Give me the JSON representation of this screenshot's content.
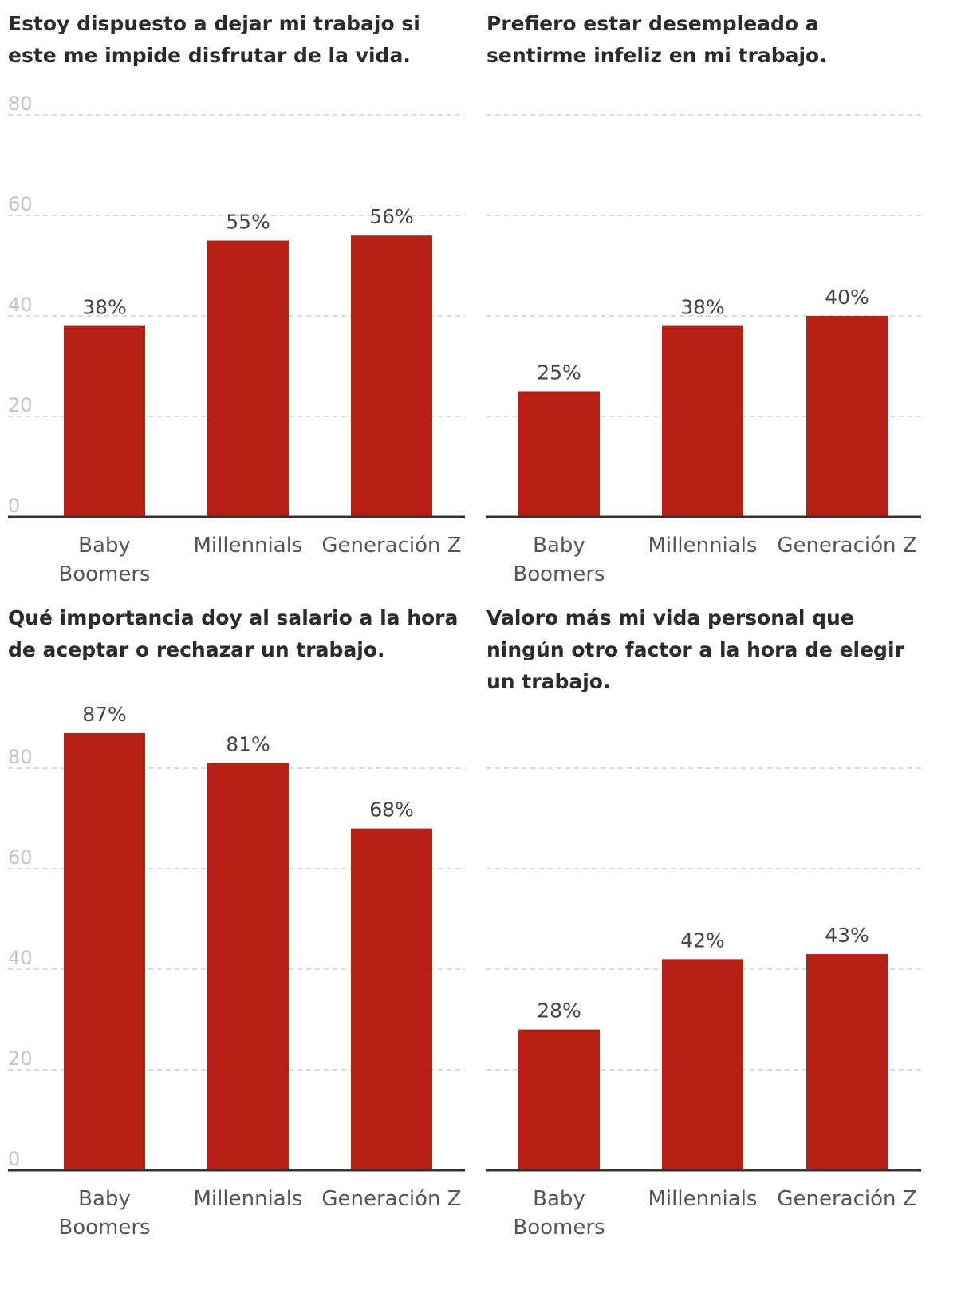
{
  "colors": {
    "bar": "#b51f14",
    "baseline": "#333333",
    "grid": "#cfcfcf",
    "tick_label": "#c4c4c4",
    "title": "#2b2b2b",
    "category_label": "#555555",
    "value_label": "#444444"
  },
  "chart_data": [
    {
      "type": "bar",
      "title": "Estoy dispuesto a dejar mi trabajo si este me impide disfrutar de la vida.",
      "categories": [
        "Baby Boomers",
        "Millennials",
        "Generación Z"
      ],
      "values": [
        38,
        55,
        56
      ],
      "value_labels": [
        "38%",
        "55%",
        "56%"
      ],
      "ylim": [
        0,
        80
      ],
      "yticks": [
        0,
        20,
        40,
        60,
        80
      ],
      "show_tick_labels": true,
      "grid": true
    },
    {
      "type": "bar",
      "title": "Prefiero estar desempleado a sentirme infeliz en mi trabajo.",
      "categories": [
        "Baby Boomers",
        "Millennials",
        "Generación Z"
      ],
      "values": [
        25,
        38,
        40
      ],
      "value_labels": [
        "25%",
        "38%",
        "40%"
      ],
      "ylim": [
        0,
        80
      ],
      "yticks": [
        0,
        20,
        40,
        60,
        80
      ],
      "show_tick_labels": false,
      "grid": true
    },
    {
      "type": "bar",
      "title": "Qué importancia doy al salario a la hora de aceptar o rechazar un trabajo.",
      "categories": [
        "Baby Boomers",
        "Millennials",
        "Generación Z"
      ],
      "values": [
        87,
        81,
        68
      ],
      "value_labels": [
        "87%",
        "81%",
        "68%"
      ],
      "ylim": [
        0,
        80
      ],
      "yticks": [
        0,
        20,
        40,
        60,
        80
      ],
      "show_tick_labels": true,
      "grid": true
    },
    {
      "type": "bar",
      "title": "Valoro más mi vida personal que ningún otro factor a la hora de elegir un trabajo.",
      "categories": [
        "Baby Boomers",
        "Millennials",
        "Generación Z"
      ],
      "values": [
        28,
        42,
        43
      ],
      "value_labels": [
        "28%",
        "42%",
        "43%"
      ],
      "ylim": [
        0,
        80
      ],
      "yticks": [
        0,
        20,
        40,
        60,
        80
      ],
      "show_tick_labels": false,
      "grid": true
    }
  ]
}
